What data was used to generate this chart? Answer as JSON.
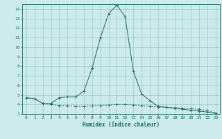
{
  "x": [
    0,
    1,
    2,
    3,
    4,
    5,
    6,
    7,
    8,
    9,
    10,
    11,
    12,
    13,
    14,
    15,
    16,
    17,
    18,
    19,
    20,
    21,
    22,
    23
  ],
  "line1": [
    4.7,
    4.6,
    4.1,
    4.1,
    4.7,
    4.8,
    4.8,
    5.4,
    7.8,
    11.0,
    13.5,
    14.4,
    13.2,
    7.5,
    5.1,
    4.4,
    3.8,
    3.7,
    3.6,
    3.5,
    3.4,
    3.3,
    3.2,
    3.1
  ],
  "line2": [
    4.7,
    4.6,
    4.1,
    4.0,
    3.9,
    3.85,
    3.8,
    3.8,
    3.85,
    3.9,
    3.95,
    4.0,
    4.0,
    3.95,
    3.9,
    3.8,
    3.75,
    3.7,
    3.65,
    3.6,
    3.55,
    3.5,
    3.35,
    3.1
  ],
  "line_color": "#1a6b5a",
  "bg_color": "#cce9eb",
  "grid_color": "#8fc0c4",
  "xlabel": "Humidex (Indice chaleur)",
  "xlim_min": -0.5,
  "xlim_max": 23.5,
  "ylim_min": 3.0,
  "ylim_max": 14.5,
  "yticks": [
    3,
    4,
    5,
    6,
    7,
    8,
    9,
    10,
    11,
    12,
    13,
    14
  ],
  "xticks": [
    0,
    1,
    2,
    3,
    4,
    5,
    6,
    7,
    8,
    9,
    10,
    11,
    12,
    13,
    14,
    15,
    16,
    17,
    18,
    19,
    20,
    21,
    22,
    23
  ]
}
